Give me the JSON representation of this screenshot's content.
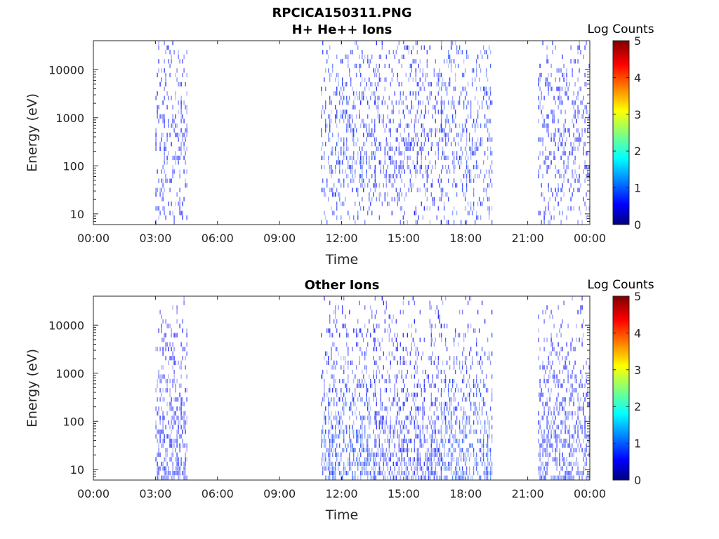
{
  "figure": {
    "filename": "RPCICA150311.PNG"
  },
  "chart_data": [
    {
      "type": "heatmap",
      "title": "H+ He++ Ions",
      "xlabel": "Time",
      "ylabel": "Energy (eV)",
      "x_ticks": [
        "00:00",
        "03:00",
        "06:00",
        "09:00",
        "12:00",
        "15:00",
        "18:00",
        "21:00",
        "00:00"
      ],
      "y_ticks": [
        "10",
        "100",
        "1000",
        "10000"
      ],
      "y_scale": "log",
      "ylim": [
        6,
        40000
      ],
      "xlim_hours": [
        0,
        24
      ],
      "colorbar": {
        "label": "Log Counts",
        "ticks": [
          "0",
          "1",
          "2",
          "3",
          "4",
          "5"
        ],
        "range": [
          0,
          5
        ],
        "colormap": "jet"
      },
      "activity_intervals_hours": [
        {
          "start": 3.0,
          "end": 4.5,
          "level": 0.9
        },
        {
          "start": 11.0,
          "end": 13.6,
          "level": 1.4
        },
        {
          "start": 13.6,
          "end": 16.8,
          "level": 0.9
        },
        {
          "start": 16.8,
          "end": 19.3,
          "level": 1.5
        },
        {
          "start": 21.5,
          "end": 24.0,
          "level": 1.0
        }
      ],
      "grid": false
    },
    {
      "type": "heatmap",
      "title": "Other Ions",
      "xlabel": "Time",
      "ylabel": "Energy (eV)",
      "x_ticks": [
        "00:00",
        "03:00",
        "06:00",
        "09:00",
        "12:00",
        "15:00",
        "18:00",
        "21:00",
        "00:00"
      ],
      "y_ticks": [
        "10",
        "100",
        "1000",
        "10000"
      ],
      "y_scale": "log",
      "ylim": [
        6,
        40000
      ],
      "xlim_hours": [
        0,
        24
      ],
      "colorbar": {
        "label": "Log Counts",
        "ticks": [
          "0",
          "1",
          "2",
          "3",
          "4",
          "5"
        ],
        "range": [
          0,
          5
        ],
        "colormap": "jet"
      },
      "activity_intervals_hours": [
        {
          "start": 3.0,
          "end": 4.5,
          "level": 0.8
        },
        {
          "start": 11.0,
          "end": 13.6,
          "level": 1.6
        },
        {
          "start": 13.6,
          "end": 16.8,
          "level": 0.9
        },
        {
          "start": 16.8,
          "end": 19.3,
          "level": 1.7
        },
        {
          "start": 21.5,
          "end": 24.0,
          "level": 1.0
        }
      ],
      "grid": false
    }
  ]
}
